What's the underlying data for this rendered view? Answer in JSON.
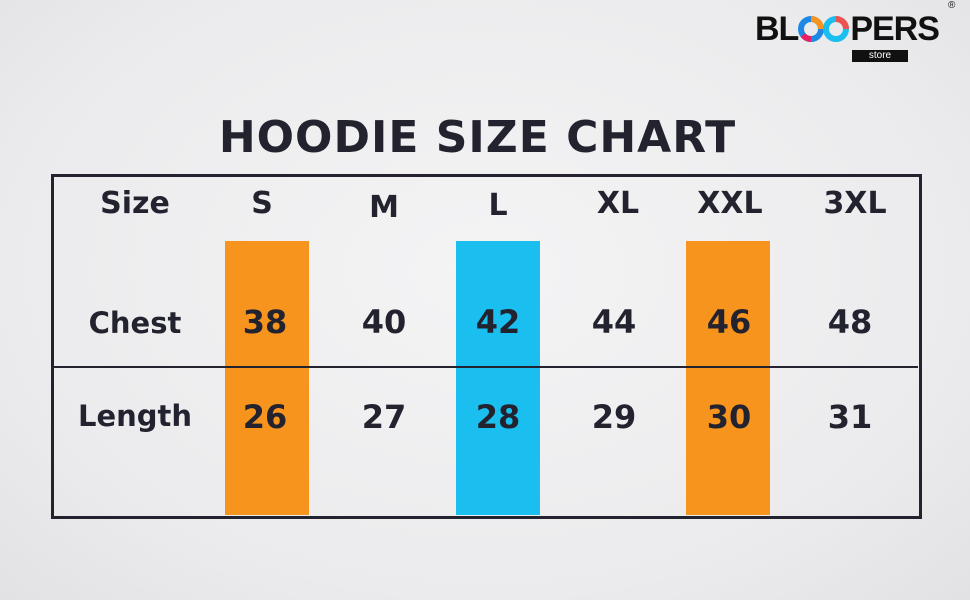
{
  "brand": {
    "logo_text": "BLOOPERS",
    "logo_sub": "store",
    "registered": "®"
  },
  "title": "HOODIE SIZE CHART",
  "colors": {
    "orange": "#F7941D",
    "blue": "#1BBFEF",
    "text": "#23232F"
  },
  "table": {
    "header_label": "Size",
    "sizes": [
      "S",
      "M",
      "L",
      "XL",
      "XXL",
      "3XL"
    ],
    "highlighted": {
      "S": "orange",
      "L": "blue",
      "XXL": "orange"
    },
    "rows": [
      {
        "label": "Chest",
        "values": [
          "38",
          "40",
          "42",
          "44",
          "46",
          "48"
        ]
      },
      {
        "label": "Length",
        "values": [
          "26",
          "27",
          "28",
          "29",
          "30",
          "31"
        ]
      }
    ]
  }
}
